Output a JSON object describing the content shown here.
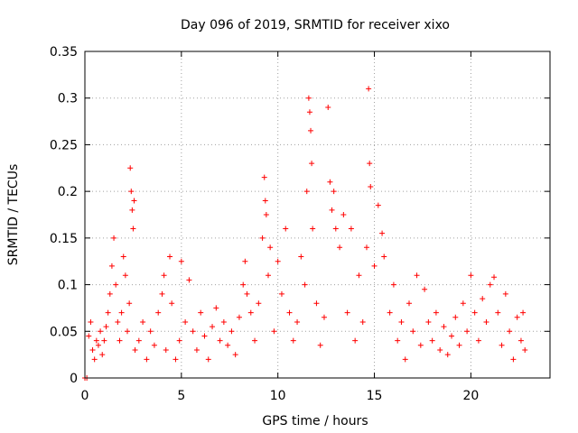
{
  "chart_data": {
    "type": "scatter",
    "title": "Day 096 of 2019, SRMTID for receiver xixo",
    "xlabel": "GPS time / hours",
    "ylabel": "SRMTID / TECUs",
    "xlim": [
      0,
      24.1
    ],
    "ylim": [
      0,
      0.35
    ],
    "xticks": [
      0,
      5,
      10,
      15,
      20
    ],
    "xtick_labels": [
      "0",
      "5",
      "10",
      "15",
      "20"
    ],
    "yticks": [
      0,
      0.05,
      0.1,
      0.15,
      0.2,
      0.25,
      0.3,
      0.35
    ],
    "ytick_labels": [
      "0",
      "0.05",
      "0.1",
      "0.15",
      "0.2",
      "0.25",
      "0.3",
      "0.35"
    ],
    "grid": true,
    "marker": "plus",
    "color": "#ff0000",
    "series": [
      {
        "name": "SRMTID",
        "points": [
          [
            0.0,
            0.0
          ],
          [
            0.1,
            0.0
          ],
          [
            0.2,
            0.045
          ],
          [
            0.3,
            0.06
          ],
          [
            0.4,
            0.03
          ],
          [
            0.5,
            0.02
          ],
          [
            0.6,
            0.04
          ],
          [
            0.7,
            0.035
          ],
          [
            0.8,
            0.05
          ],
          [
            0.9,
            0.025
          ],
          [
            1.0,
            0.04
          ],
          [
            1.1,
            0.055
          ],
          [
            1.2,
            0.07
          ],
          [
            1.3,
            0.09
          ],
          [
            1.4,
            0.12
          ],
          [
            1.5,
            0.15
          ],
          [
            1.6,
            0.1
          ],
          [
            1.7,
            0.06
          ],
          [
            1.8,
            0.04
          ],
          [
            1.9,
            0.07
          ],
          [
            2.0,
            0.13
          ],
          [
            2.1,
            0.11
          ],
          [
            2.2,
            0.05
          ],
          [
            2.3,
            0.08
          ],
          [
            2.35,
            0.225
          ],
          [
            2.4,
            0.2
          ],
          [
            2.45,
            0.18
          ],
          [
            2.5,
            0.16
          ],
          [
            2.55,
            0.19
          ],
          [
            2.6,
            0.03
          ],
          [
            2.8,
            0.04
          ],
          [
            3.0,
            0.06
          ],
          [
            3.2,
            0.02
          ],
          [
            3.4,
            0.05
          ],
          [
            3.6,
            0.035
          ],
          [
            3.8,
            0.07
          ],
          [
            4.0,
            0.09
          ],
          [
            4.1,
            0.11
          ],
          [
            4.2,
            0.03
          ],
          [
            4.4,
            0.13
          ],
          [
            4.5,
            0.08
          ],
          [
            4.7,
            0.02
          ],
          [
            4.9,
            0.04
          ],
          [
            5.0,
            0.125
          ],
          [
            5.2,
            0.06
          ],
          [
            5.4,
            0.105
          ],
          [
            5.6,
            0.05
          ],
          [
            5.8,
            0.03
          ],
          [
            6.0,
            0.07
          ],
          [
            6.2,
            0.045
          ],
          [
            6.4,
            0.02
          ],
          [
            6.6,
            0.055
          ],
          [
            6.8,
            0.075
          ],
          [
            7.0,
            0.04
          ],
          [
            7.2,
            0.06
          ],
          [
            7.4,
            0.035
          ],
          [
            7.6,
            0.05
          ],
          [
            7.8,
            0.025
          ],
          [
            8.0,
            0.065
          ],
          [
            8.2,
            0.1
          ],
          [
            8.3,
            0.125
          ],
          [
            8.4,
            0.09
          ],
          [
            8.6,
            0.07
          ],
          [
            8.8,
            0.04
          ],
          [
            9.0,
            0.08
          ],
          [
            9.2,
            0.15
          ],
          [
            9.3,
            0.215
          ],
          [
            9.35,
            0.19
          ],
          [
            9.4,
            0.175
          ],
          [
            9.5,
            0.11
          ],
          [
            9.6,
            0.14
          ],
          [
            9.8,
            0.05
          ],
          [
            10.0,
            0.125
          ],
          [
            10.2,
            0.09
          ],
          [
            10.4,
            0.16
          ],
          [
            10.6,
            0.07
          ],
          [
            10.8,
            0.04
          ],
          [
            11.0,
            0.06
          ],
          [
            11.2,
            0.13
          ],
          [
            11.4,
            0.1
          ],
          [
            11.5,
            0.2
          ],
          [
            11.6,
            0.3
          ],
          [
            11.65,
            0.285
          ],
          [
            11.7,
            0.265
          ],
          [
            11.75,
            0.23
          ],
          [
            11.8,
            0.16
          ],
          [
            12.0,
            0.08
          ],
          [
            12.2,
            0.035
          ],
          [
            12.4,
            0.065
          ],
          [
            12.6,
            0.29
          ],
          [
            12.7,
            0.21
          ],
          [
            12.8,
            0.18
          ],
          [
            12.9,
            0.2
          ],
          [
            13.0,
            0.16
          ],
          [
            13.2,
            0.14
          ],
          [
            13.4,
            0.175
          ],
          [
            13.6,
            0.07
          ],
          [
            13.8,
            0.16
          ],
          [
            14.0,
            0.04
          ],
          [
            14.2,
            0.11
          ],
          [
            14.4,
            0.06
          ],
          [
            14.6,
            0.14
          ],
          [
            14.7,
            0.31
          ],
          [
            14.75,
            0.23
          ],
          [
            14.8,
            0.205
          ],
          [
            15.0,
            0.12
          ],
          [
            15.2,
            0.185
          ],
          [
            15.4,
            0.155
          ],
          [
            15.5,
            0.13
          ],
          [
            15.8,
            0.07
          ],
          [
            16.0,
            0.1
          ],
          [
            16.2,
            0.04
          ],
          [
            16.4,
            0.06
          ],
          [
            16.6,
            0.02
          ],
          [
            16.8,
            0.08
          ],
          [
            17.0,
            0.05
          ],
          [
            17.2,
            0.11
          ],
          [
            17.4,
            0.035
          ],
          [
            17.6,
            0.095
          ],
          [
            17.8,
            0.06
          ],
          [
            18.0,
            0.04
          ],
          [
            18.2,
            0.07
          ],
          [
            18.4,
            0.03
          ],
          [
            18.6,
            0.055
          ],
          [
            18.8,
            0.025
          ],
          [
            19.0,
            0.045
          ],
          [
            19.2,
            0.065
          ],
          [
            19.4,
            0.035
          ],
          [
            19.6,
            0.08
          ],
          [
            19.8,
            0.05
          ],
          [
            20.0,
            0.11
          ],
          [
            20.2,
            0.07
          ],
          [
            20.4,
            0.04
          ],
          [
            20.6,
            0.085
          ],
          [
            20.8,
            0.06
          ],
          [
            21.0,
            0.1
          ],
          [
            21.2,
            0.108
          ],
          [
            21.4,
            0.07
          ],
          [
            21.6,
            0.035
          ],
          [
            21.8,
            0.09
          ],
          [
            22.0,
            0.05
          ],
          [
            22.2,
            0.02
          ],
          [
            22.4,
            0.065
          ],
          [
            22.6,
            0.04
          ],
          [
            22.7,
            0.07
          ],
          [
            22.8,
            0.03
          ]
        ]
      }
    ]
  }
}
